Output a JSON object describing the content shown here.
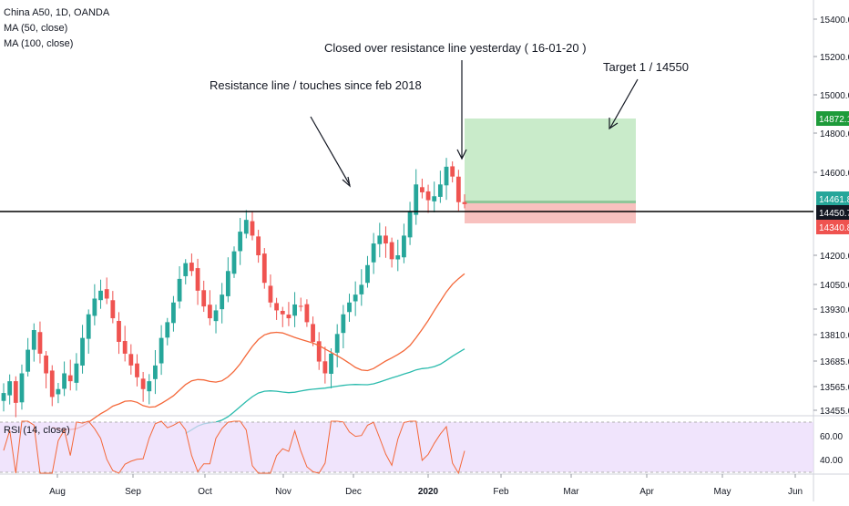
{
  "legend": {
    "symbol": "China A50, 1D, OANDA",
    "ma50": "MA (50, close)",
    "ma100": "MA (100, close)"
  },
  "rsi_label": "RSI (14, close)",
  "annotations": {
    "resistance": "Resistance line / touches since feb 2018",
    "closed": "Closed over resistance line yesterday ( 16-01-20 )",
    "target": "Target 1 / 14550"
  },
  "price_axis": {
    "ticks": [
      "15400.0",
      "15200.0",
      "15000.0",
      "14800.0",
      "14600.0",
      "14200.0",
      "14050.0",
      "13930.0",
      "13810.0",
      "13685.0",
      "13565.0",
      "13455.0"
    ],
    "badges": [
      {
        "label": "14872.1",
        "value": 14872.1,
        "color": "#1e9b3a"
      },
      {
        "label": "14461.8",
        "value": 14461.8,
        "color": "#26a69a"
      },
      {
        "label": "14450.7",
        "value": 14450.7,
        "color": "#131722"
      },
      {
        "label": "14340.8",
        "value": 14340.8,
        "color": "#ef5350"
      }
    ]
  },
  "rsi_axis": {
    "ticks": [
      "60.00",
      "40.00"
    ]
  },
  "time_axis": {
    "labels": [
      "Aug",
      "Sep",
      "Oct",
      "Nov",
      "Dec",
      "2020",
      "Feb",
      "Mar",
      "Apr",
      "May",
      "Jun"
    ]
  },
  "colors": {
    "up": "#26a69a",
    "down": "#ef5350",
    "ma50": "#f4683a",
    "ma100": "#2bbbad",
    "rsi": "#f4683a",
    "rsi_band": "#e9d8fb",
    "target_zone": "#b7e4b8",
    "stop_zone": "#f7b6b4",
    "resistance": "#000000"
  },
  "chart_data": {
    "type": "candlestick",
    "symbol": "China A50",
    "interval": "1D",
    "source": "OANDA",
    "resistance_level": 14450.7,
    "position": {
      "entry": 14461.8,
      "target": 14872.1,
      "stop": 14340.8
    },
    "ohlc_sample_close": [
      13500,
      13560,
      13450,
      13600,
      13720,
      13820,
      13700,
      13600,
      13480,
      13520,
      13600,
      13560,
      13650,
      13780,
      13900,
      13980,
      14020,
      13980,
      13880,
      13760,
      13700,
      13640,
      13580,
      13520,
      13560,
      13640,
      13780,
      13860,
      13960,
      14080,
      14160,
      14120,
      14020,
      13940,
      13880,
      13920,
      14000,
      14120,
      14220,
      14320,
      14380,
      14300,
      14200,
      14060,
      13960,
      13920,
      13900,
      13880,
      13950,
      13940,
      13860,
      13760,
      13660,
      13600,
      13700,
      13800,
      13900,
      13960,
      14000,
      14050,
      14150,
      14260,
      14300,
      14260,
      14180,
      14200,
      14300,
      14420,
      14560,
      14520,
      14480,
      14500,
      14560,
      14650,
      14600,
      14470,
      14460
    ]
  }
}
